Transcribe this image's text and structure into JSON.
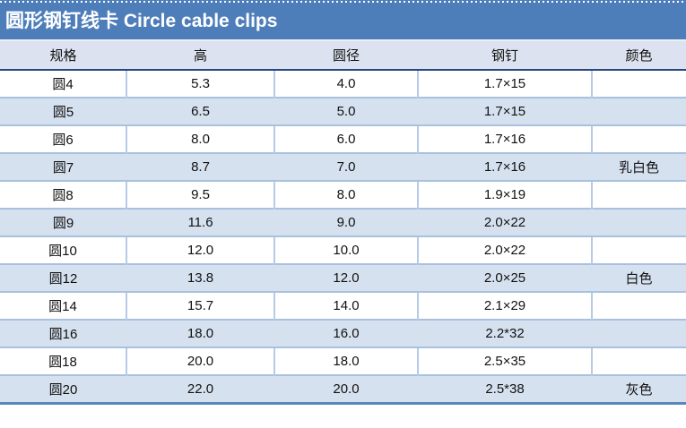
{
  "title": "圆形钢钉线卡 Circle cable clips",
  "table": {
    "columns": [
      "规格",
      "高",
      "圆径",
      "钢钉",
      "颜色"
    ],
    "rows": [
      [
        "圆4",
        "5.3",
        "4.0",
        "1.7×15",
        ""
      ],
      [
        "圆5",
        "6.5",
        "5.0",
        "1.7×15",
        ""
      ],
      [
        "圆6",
        "8.0",
        "6.0",
        "1.7×16",
        ""
      ],
      [
        "圆7",
        "8.7",
        "7.0",
        "1.7×16",
        "乳白色"
      ],
      [
        "圆8",
        "9.5",
        "8.0",
        "1.9×19",
        ""
      ],
      [
        "圆9",
        "11.6",
        "9.0",
        "2.0×22",
        ""
      ],
      [
        "圆10",
        "12.0",
        "10.0",
        "2.0×22",
        ""
      ],
      [
        "圆12",
        "13.8",
        "12.0",
        "2.0×25",
        "白色"
      ],
      [
        "圆14",
        "15.7",
        "14.0",
        "2.1×29",
        ""
      ],
      [
        "圆16",
        "18.0",
        "16.0",
        "2.2*32",
        ""
      ],
      [
        "圆18",
        "20.0",
        "18.0",
        "2.5×35",
        ""
      ],
      [
        "圆20",
        "22.0",
        "20.0",
        "2.5*38",
        "灰色"
      ]
    ]
  },
  "colors": {
    "title_bar": "#4E7EBA",
    "title_text": "#FFFFFF",
    "header_bg": "#DCE2EF",
    "band_bg": "#D6E1F0",
    "row_border": "#A9C1DE",
    "column_border": "#B6CBE4",
    "header_border": "#24477E",
    "bottom_border": "#5B86BB",
    "body_text": "#111111"
  }
}
